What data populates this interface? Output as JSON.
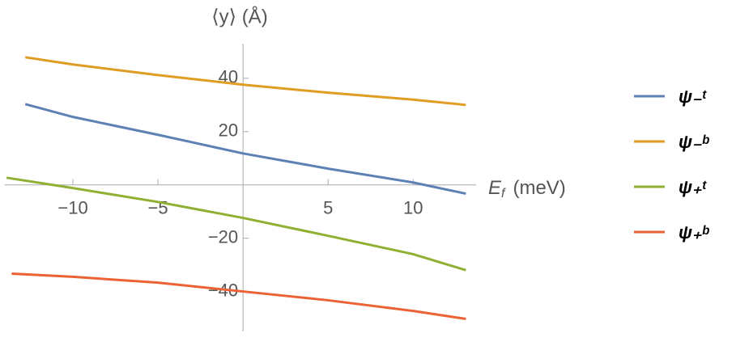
{
  "chart_data": {
    "type": "line",
    "y_label": "⟨y⟩ (Å)",
    "x_label": {
      "symbol": "E",
      "subscript": "f",
      "unit": "(meV)"
    },
    "xlim": [
      -14,
      13.7
    ],
    "ylim": [
      -55,
      53
    ],
    "xticks": [
      {
        "value": -10,
        "label": "−10"
      },
      {
        "value": -5,
        "label": "−5"
      },
      5,
      10
    ],
    "yticks": [
      {
        "value": -40,
        "label": "−40"
      },
      {
        "value": -20,
        "label": "−20"
      },
      20,
      40
    ],
    "series": [
      {
        "name": "ψ₋ᵗ",
        "color": "#5e81b5",
        "x": [
          -12.8,
          -10,
          -5,
          0,
          5,
          10,
          13.1
        ],
        "values": [
          30.3,
          25.5,
          18.8,
          11.8,
          6.1,
          0.9,
          -3.3
        ]
      },
      {
        "name": "ψ₋ᵇ",
        "color": "#e19c24",
        "x": [
          -12.8,
          -10,
          -5,
          0,
          5,
          10,
          13.1
        ],
        "values": [
          47.9,
          45.2,
          41.2,
          37.6,
          34.6,
          32,
          30
        ]
      },
      {
        "name": "ψ₊ᵗ",
        "color": "#8fb032",
        "x": [
          -13.9,
          -10,
          -5,
          0,
          5,
          10,
          13.1
        ],
        "values": [
          2.7,
          -1.2,
          -6.4,
          -12.4,
          -19.1,
          -26,
          -32
        ]
      },
      {
        "name": "ψ₊ᵇ",
        "color": "#eb6235",
        "x": [
          -13.6,
          -10,
          -5,
          0,
          5,
          10,
          13.1
        ],
        "values": [
          -33.3,
          -34.5,
          -36.7,
          -40,
          -43.3,
          -47.3,
          -50.3
        ]
      }
    ]
  }
}
